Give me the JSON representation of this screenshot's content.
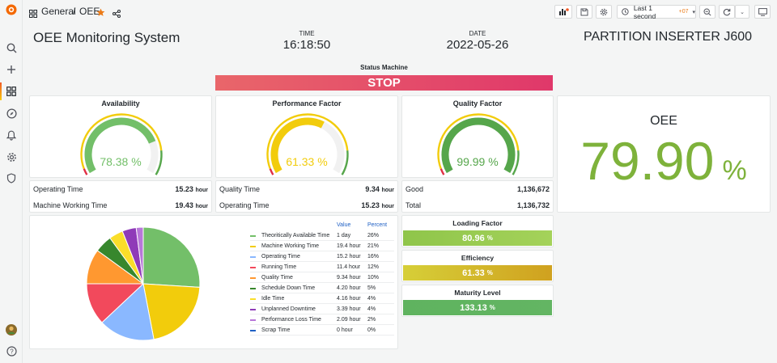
{
  "breadcrumb": {
    "folder": "General",
    "separator": "/",
    "dashboard": "OEE"
  },
  "time_picker": {
    "label": "Last 1 second",
    "offset": "+07"
  },
  "header": {
    "title": "OEE Monitoring System",
    "time_label": "TIME",
    "time_value": "16:18:50",
    "date_label": "DATE",
    "date_value": "2022-05-26",
    "machine": "PARTITION INSERTER J600"
  },
  "status": {
    "title": "Status Machine",
    "value": "STOP",
    "color_from": "#e9666a",
    "color_to": "#e0386a"
  },
  "gauges": [
    {
      "title": "Availability",
      "value": 78.38,
      "display": "78.38 %",
      "color": "#73bf69"
    },
    {
      "title": "Performance Factor",
      "value": 61.33,
      "display": "61.33 %",
      "color": "#f2cc0c"
    },
    {
      "title": "Quality Factor",
      "value": 99.99,
      "display": "99.99 %",
      "color": "#56a64b"
    }
  ],
  "availability_stats": [
    {
      "label": "Operating Time",
      "value": "15.23",
      "unit": "hour"
    },
    {
      "label": "Machine Working Time",
      "value": "19.43",
      "unit": "hour"
    }
  ],
  "performance_stats": [
    {
      "label": "Quality Time",
      "value": "9.34",
      "unit": "hour"
    },
    {
      "label": "Operating Time",
      "value": "15.23",
      "unit": "hour"
    }
  ],
  "quality_stats": [
    {
      "label": "Good",
      "value": "1,136,672"
    },
    {
      "label": "Total",
      "value": "1,136,732"
    }
  ],
  "oee": {
    "title": "OEE",
    "value": "79.90",
    "unit": "%",
    "color": "#7eb23b"
  },
  "pie_legend": {
    "headers": [
      "Value",
      "Percent"
    ],
    "items": [
      {
        "label": "Theoritically Available Time",
        "value": "1 day",
        "percent": "26%",
        "color": "#73bf69",
        "fraction": 0.26
      },
      {
        "label": "Machine Working Time",
        "value": "19.4 hour",
        "percent": "21%",
        "color": "#f2cc0c",
        "fraction": 0.21
      },
      {
        "label": "Operating Time",
        "value": "15.2 hour",
        "percent": "16%",
        "color": "#8ab8ff",
        "fraction": 0.16
      },
      {
        "label": "Running Time",
        "value": "11.4 hour",
        "percent": "12%",
        "color": "#f2495c",
        "fraction": 0.12
      },
      {
        "label": "Quality Time",
        "value": "9.34 hour",
        "percent": "10%",
        "color": "#ff9830",
        "fraction": 0.1
      },
      {
        "label": "Schedule Down Time",
        "value": "4.20 hour",
        "percent": "5%",
        "color": "#37872d",
        "fraction": 0.05
      },
      {
        "label": "Idle Time",
        "value": "4.16 hour",
        "percent": "4%",
        "color": "#fade2a",
        "fraction": 0.04
      },
      {
        "label": "Unplanned Downtime",
        "value": "3.39 hour",
        "percent": "4%",
        "color": "#8f3bb8",
        "fraction": 0.04
      },
      {
        "label": "Performance Loss Time",
        "value": "2.09 hour",
        "percent": "2%",
        "color": "#b877d9",
        "fraction": 0.02
      },
      {
        "label": "Scrap Time",
        "value": "0 hour",
        "percent": "0%",
        "color": "#1f60c4",
        "fraction": 0.0
      }
    ]
  },
  "bars": [
    {
      "title": "Loading Factor",
      "value": "80.96",
      "unit": "%",
      "color": "#8fc54a",
      "color2": "#a4d25a"
    },
    {
      "title": "Efficiency",
      "value": "61.33",
      "unit": "%",
      "color": "#d6cf38",
      "color2": "#d0a11f"
    },
    {
      "title": "Maturity Level",
      "value": "133.13",
      "unit": "%",
      "color": "#5fb35f",
      "color2": "#63b563"
    }
  ]
}
